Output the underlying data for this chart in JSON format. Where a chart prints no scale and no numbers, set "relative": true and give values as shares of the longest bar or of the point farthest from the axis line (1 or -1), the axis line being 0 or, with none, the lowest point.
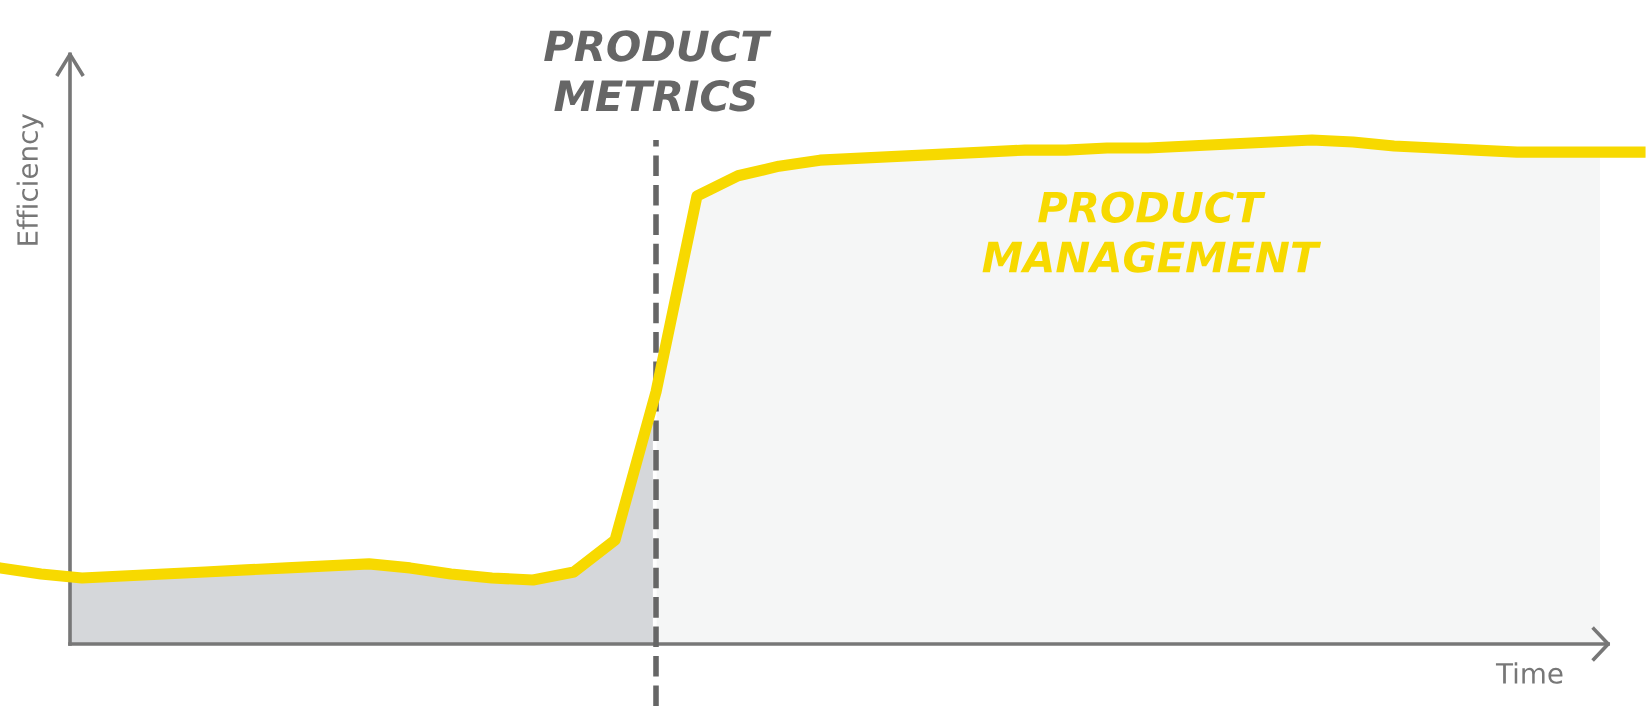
{
  "chart_data": {
    "type": "line",
    "relative": true,
    "xlabel": "Time",
    "ylabel": "Efficiency",
    "marker": "none",
    "line_style": "solid",
    "categories": [
      null,
      null,
      null,
      null,
      null,
      null,
      null,
      null,
      null,
      null,
      null,
      null,
      null,
      null,
      null,
      null,
      null,
      null,
      null,
      null,
      null,
      null,
      null,
      null,
      null,
      null,
      null,
      null,
      null,
      null,
      null,
      null,
      null,
      null,
      null,
      null,
      null,
      null,
      null,
      null,
      null
    ],
    "series": [
      {
        "color": "#f7d900",
        "values": [
          0.151,
          0.139,
          0.131,
          0.135,
          0.139,
          0.143,
          0.147,
          0.151,
          0.155,
          0.159,
          0.151,
          0.139,
          0.131,
          0.127,
          0.143,
          0.206,
          0.5,
          0.889,
          0.929,
          0.948,
          0.96,
          0.964,
          0.968,
          0.972,
          0.976,
          0.98,
          0.98,
          0.984,
          0.984,
          0.988,
          0.992,
          0.996,
          1,
          0.996,
          0.988,
          0.984,
          0.98,
          0.976,
          0.976,
          0.976,
          0.976
        ]
      }
    ],
    "annotations": [
      "PRODUCT\nMETRICS",
      "PRODUCT\nMANAGEMENT"
    ]
  }
}
